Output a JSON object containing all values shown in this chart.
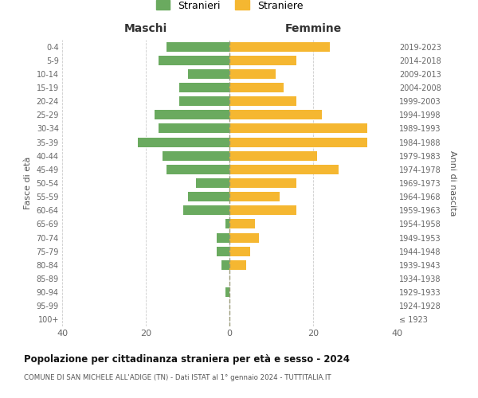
{
  "age_groups": [
    "100+",
    "95-99",
    "90-94",
    "85-89",
    "80-84",
    "75-79",
    "70-74",
    "65-69",
    "60-64",
    "55-59",
    "50-54",
    "45-49",
    "40-44",
    "35-39",
    "30-34",
    "25-29",
    "20-24",
    "15-19",
    "10-14",
    "5-9",
    "0-4"
  ],
  "birth_years": [
    "≤ 1923",
    "1924-1928",
    "1929-1933",
    "1934-1938",
    "1939-1943",
    "1944-1948",
    "1949-1953",
    "1954-1958",
    "1959-1963",
    "1964-1968",
    "1969-1973",
    "1974-1978",
    "1979-1983",
    "1984-1988",
    "1989-1993",
    "1994-1998",
    "1999-2003",
    "2004-2008",
    "2009-2013",
    "2014-2018",
    "2019-2023"
  ],
  "maschi": [
    0,
    0,
    1,
    0,
    2,
    3,
    3,
    1,
    11,
    10,
    8,
    15,
    16,
    22,
    17,
    18,
    12,
    12,
    10,
    17,
    15
  ],
  "femmine": [
    0,
    0,
    0,
    0,
    4,
    5,
    7,
    6,
    16,
    12,
    16,
    26,
    21,
    33,
    33,
    22,
    16,
    13,
    11,
    16,
    24
  ],
  "color_maschi": "#6aaa5f",
  "color_femmine": "#f5b731",
  "xlim": 40,
  "title": "Popolazione per cittadinanza straniera per età e sesso - 2024",
  "subtitle": "COMUNE DI SAN MICHELE ALL'ADIGE (TN) - Dati ISTAT al 1° gennaio 2024 - TUTTITALIA.IT",
  "xlabel_left": "Maschi",
  "xlabel_right": "Femmine",
  "ylabel_left": "Fasce di età",
  "ylabel_right": "Anni di nascita",
  "legend_maschi": "Stranieri",
  "legend_femmine": "Straniere",
  "background_color": "#ffffff",
  "grid_color": "#cccccc"
}
